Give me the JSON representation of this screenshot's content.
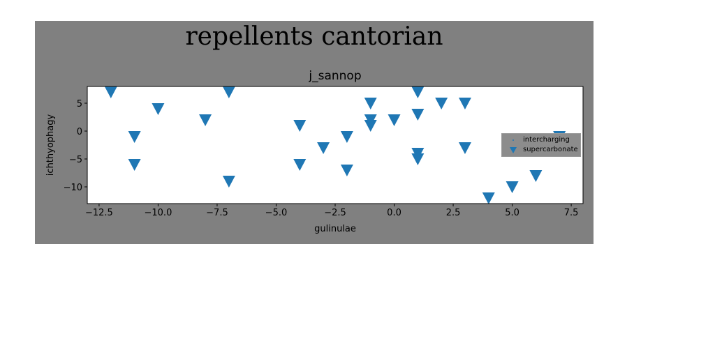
{
  "figure": {
    "suptitle": "repellents cantorian",
    "background": "#808080"
  },
  "chart_data": {
    "type": "scatter",
    "title": "j_sannop",
    "xlabel": "gulinulae",
    "ylabel": "ichthyophagy",
    "xlim": [
      -13.0,
      8.0
    ],
    "ylim": [
      -13.0,
      8.0
    ],
    "xticks": [
      -12.5,
      -10.0,
      -7.5,
      -5.0,
      -2.5,
      0.0,
      2.5,
      5.0,
      7.5
    ],
    "xtick_labels": [
      "−12.5",
      "−10.0",
      "−7.5",
      "−5.0",
      "−2.5",
      "0.0",
      "2.5",
      "5.0",
      "7.5"
    ],
    "yticks": [
      5,
      0,
      -5,
      -10
    ],
    "ytick_labels": [
      "5",
      "0",
      "−5",
      "−10"
    ],
    "grid": false,
    "legend_position": "right",
    "series": [
      {
        "name": "intercharging",
        "marker": "point",
        "color": "#1f77b4",
        "x": [],
        "y": []
      },
      {
        "name": "supercarbonate",
        "marker": "triangle-down",
        "color": "#1f77b4",
        "x": [
          -12,
          -11,
          -11,
          -10,
          -8,
          -7,
          -7,
          -4,
          -4,
          -3,
          -2,
          -2,
          -1,
          -1,
          -1,
          0,
          1,
          1,
          1,
          1,
          2,
          3,
          3,
          4,
          5,
          6,
          7
        ],
        "y": [
          7,
          -1,
          -6,
          4,
          2,
          7,
          -9,
          1,
          -6,
          -3,
          -1,
          -7,
          5,
          2,
          1,
          2,
          7,
          3,
          -4,
          -5,
          5,
          5,
          -3,
          -12,
          -10,
          -8,
          -1
        ]
      }
    ]
  }
}
